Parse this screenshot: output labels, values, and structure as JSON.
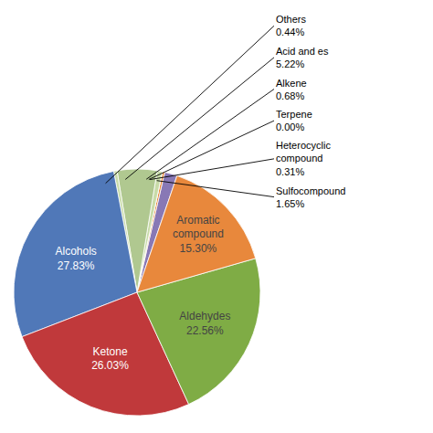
{
  "chart_data": {
    "type": "pie",
    "categories": [
      "Sulfocompound",
      "Heterocyclic\ncompound",
      "Terpene",
      "Alkene",
      "Acid and es",
      "Others",
      "Alcohols",
      "Ketone",
      "Aldehydes",
      "Aromatic\ncompound"
    ],
    "values": [
      1.65,
      0.31,
      0.001,
      0.68,
      5.22,
      0.44,
      27.83,
      26.03,
      22.56,
      15.3
    ],
    "value_labels": [
      "1.65%",
      "0.31%",
      "0.00%",
      "0.68%",
      "5.22%",
      "0.44%",
      "27.83%",
      "26.03%",
      "22.56%",
      "15.30%"
    ],
    "colors": [
      "#8878b5",
      "#e8883c",
      "#e8883c",
      "#c8dba8",
      "#b0c890",
      "#c8dba8",
      "#5078b8",
      "#c0393b",
      "#7fac45",
      "#e8883c"
    ]
  }
}
